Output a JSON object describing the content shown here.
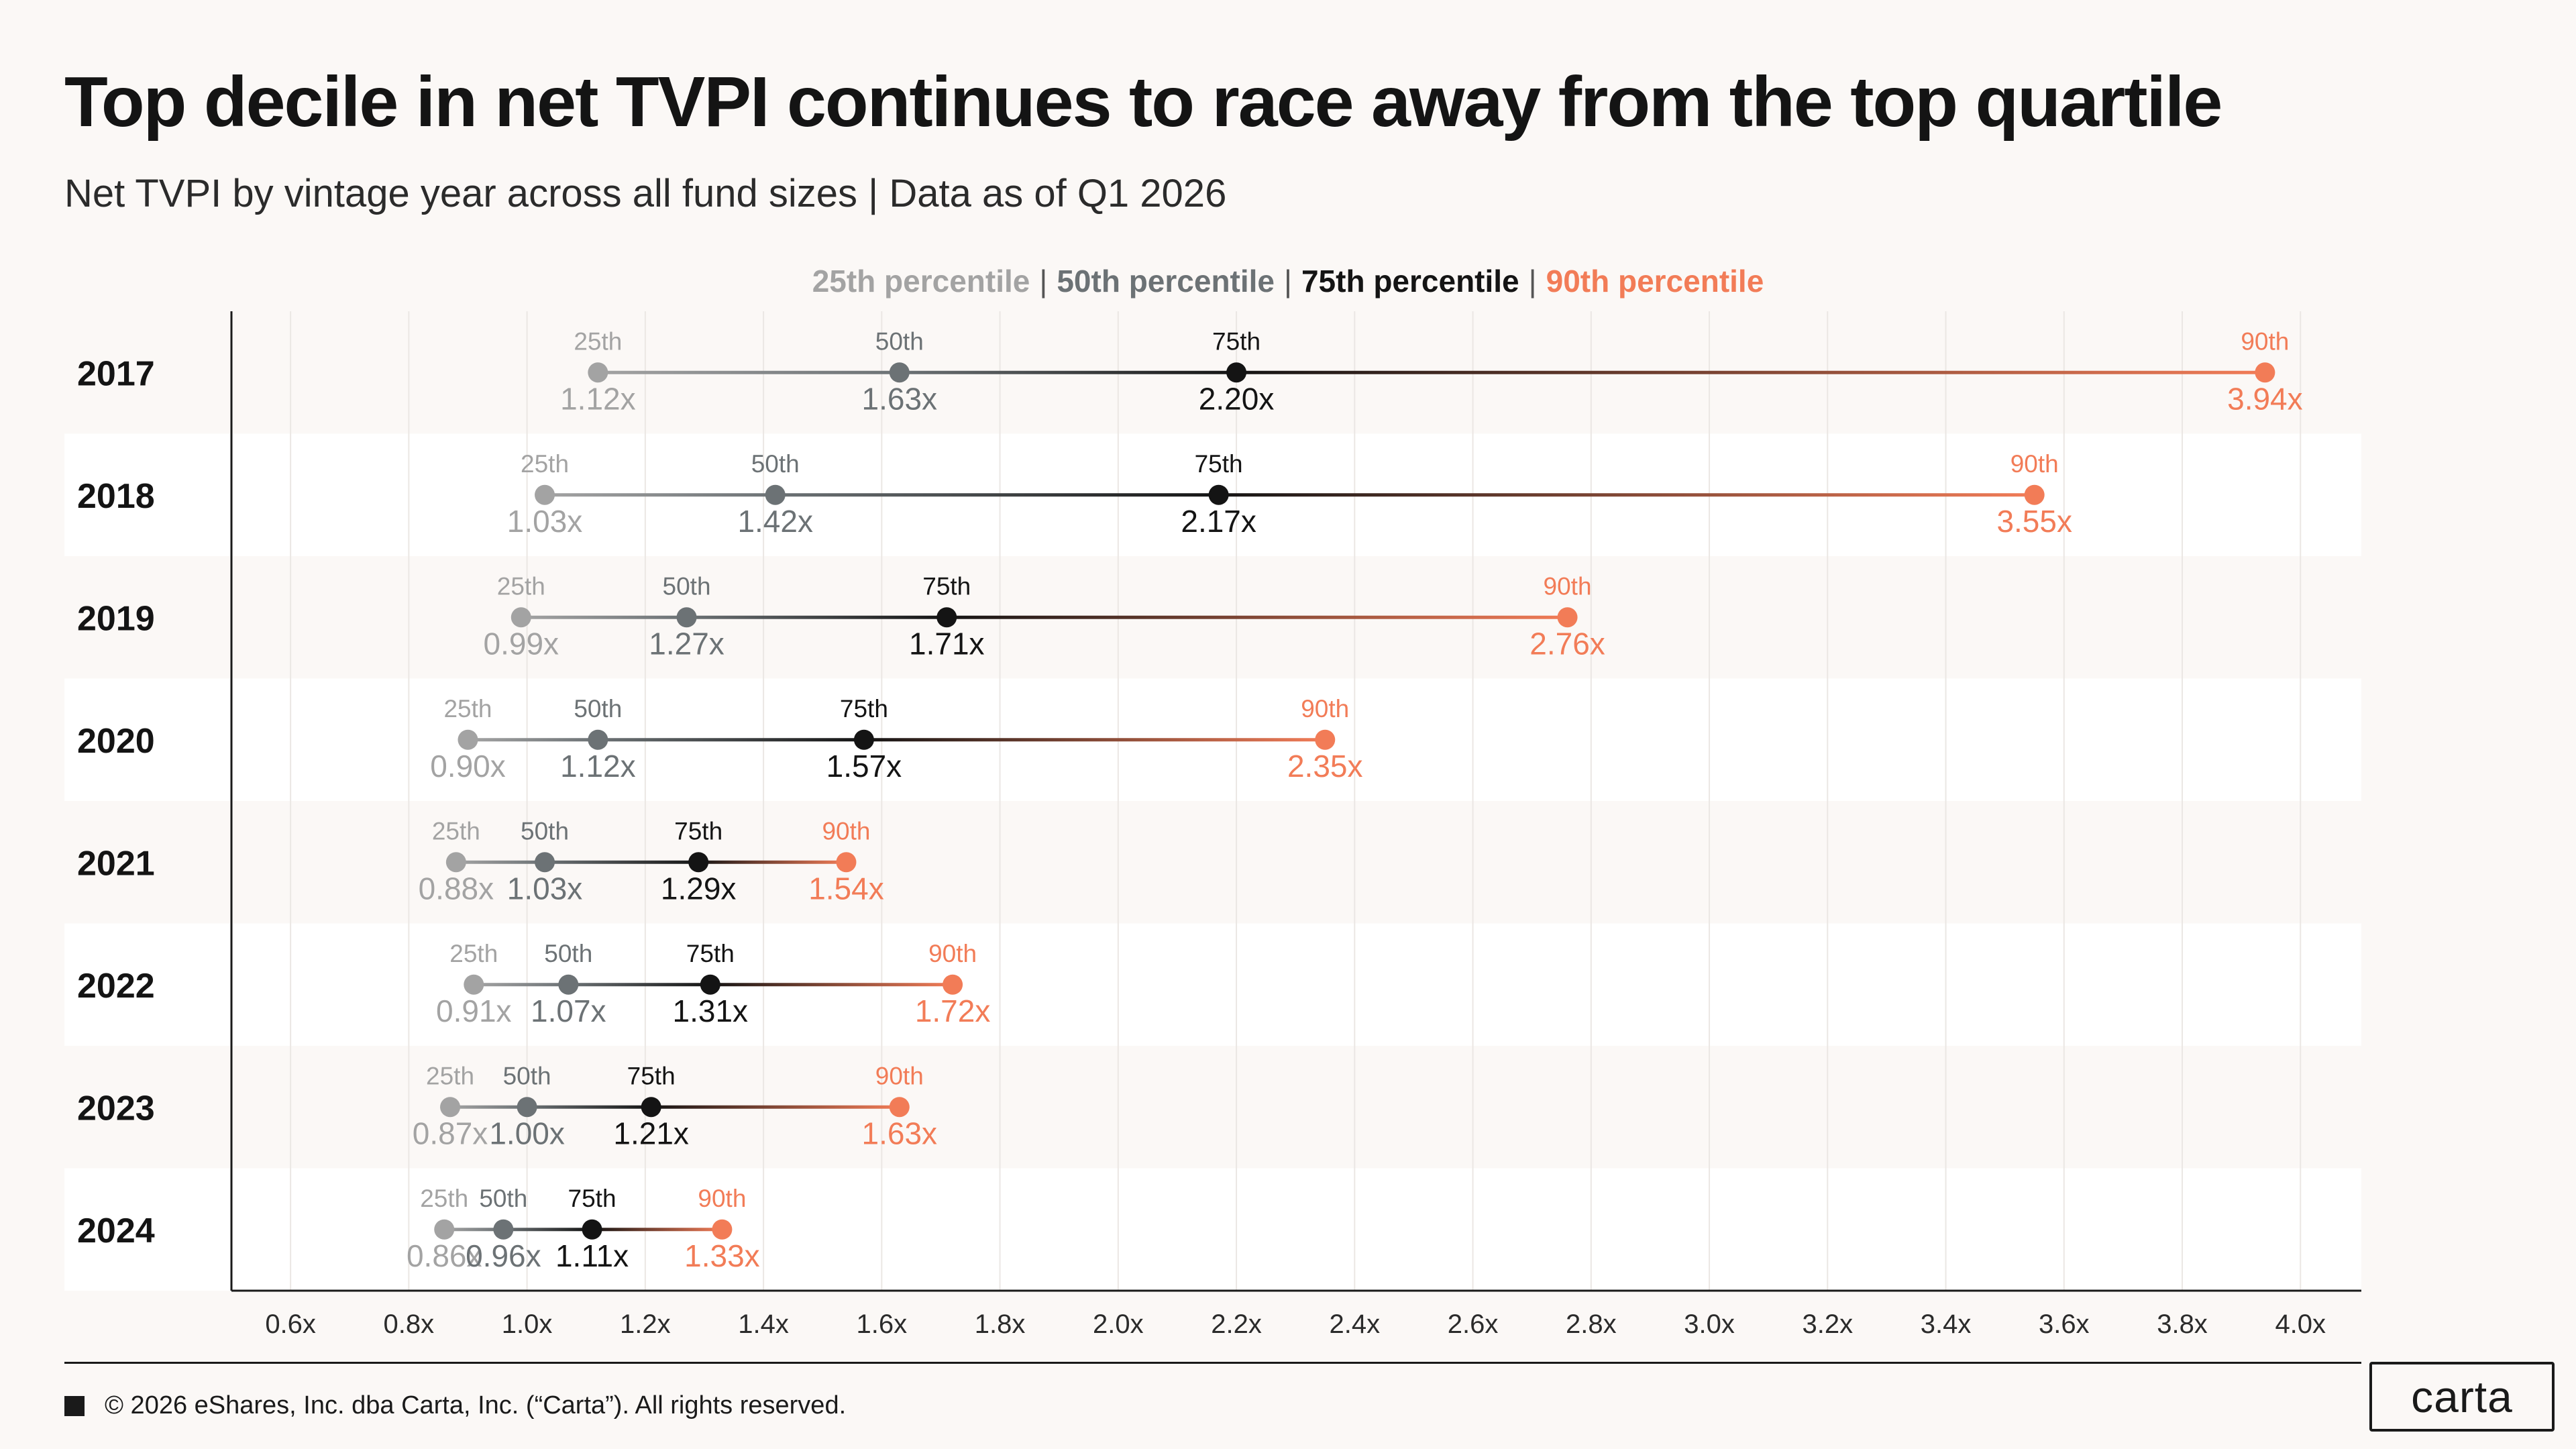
{
  "header": {
    "title": "Top decile in net TVPI continues to race away from the top quartile",
    "subtitle": "Net TVPI by vintage year across all fund sizes | Data as of Q1 2026"
  },
  "legend": {
    "p25": "25th percentile",
    "p50": "50th percentile",
    "p75": "75th percentile",
    "p90": "90th percentile",
    "separator": "|"
  },
  "colors": {
    "p25": "#a3a3a3",
    "p50": "#6c7275",
    "p75": "#141414",
    "p90": "#f27c57",
    "band": "#ffffff",
    "grid": "#ebe7e4",
    "axis": "#1a1a1a"
  },
  "chart_data": {
    "type": "dumbbell",
    "orientation": "horizontal",
    "categories": [
      "2017",
      "2018",
      "2019",
      "2020",
      "2021",
      "2022",
      "2023",
      "2024"
    ],
    "point_labels": [
      "25th",
      "50th",
      "75th",
      "90th"
    ],
    "series": [
      {
        "name": "25th percentile",
        "values": [
          1.12,
          1.03,
          0.99,
          0.9,
          0.88,
          0.91,
          0.87,
          0.86
        ]
      },
      {
        "name": "50th percentile",
        "values": [
          1.63,
          1.42,
          1.27,
          1.12,
          1.03,
          1.07,
          1.0,
          0.96
        ]
      },
      {
        "name": "75th percentile",
        "values": [
          2.2,
          2.17,
          1.71,
          1.57,
          1.29,
          1.31,
          1.21,
          1.11
        ]
      },
      {
        "name": "90th percentile",
        "values": [
          3.94,
          3.55,
          2.76,
          2.35,
          1.54,
          1.72,
          1.63,
          1.33
        ]
      }
    ],
    "value_labels": [
      [
        "1.12x",
        "1.63x",
        "2.20x",
        "3.94x"
      ],
      [
        "1.03x",
        "1.42x",
        "2.17x",
        "3.55x"
      ],
      [
        "0.99x",
        "1.27x",
        "1.71x",
        "2.76x"
      ],
      [
        "0.90x",
        "1.12x",
        "1.57x",
        "2.35x"
      ],
      [
        "0.88x",
        "1.03x",
        "1.29x",
        "1.54x"
      ],
      [
        "0.91x",
        "1.07x",
        "1.31x",
        "1.72x"
      ],
      [
        "0.87x",
        "1.00x",
        "1.21x",
        "1.63x"
      ],
      [
        "0.86x",
        "0.96x",
        "1.11x",
        "1.33x"
      ]
    ],
    "x_ticks": [
      0.6,
      0.8,
      1.0,
      1.2,
      1.4,
      1.6,
      1.8,
      2.0,
      2.2,
      2.4,
      2.6,
      2.8,
      3.0,
      3.2,
      3.4,
      3.6,
      3.8,
      4.0
    ],
    "x_tick_labels": [
      "0.6x",
      "0.8x",
      "1.0x",
      "1.2x",
      "1.4x",
      "1.6x",
      "1.8x",
      "2.0x",
      "2.2x",
      "2.4x",
      "2.6x",
      "2.8x",
      "3.0x",
      "3.2x",
      "3.4x",
      "3.6x",
      "3.8x",
      "4.0x"
    ],
    "xlim": [
      0.5,
      4.12
    ],
    "grid": true
  },
  "footer": {
    "copyright": "© 2026 eShares, Inc. dba Carta, Inc. (“Carta”). All rights reserved.",
    "logo_text": "carta"
  }
}
